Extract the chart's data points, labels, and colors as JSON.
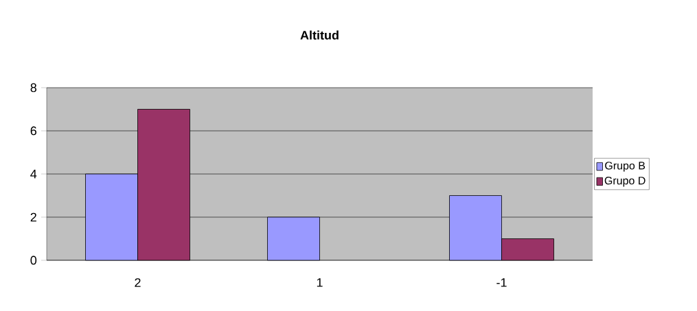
{
  "chart_data": {
    "type": "bar",
    "title": "Altitud",
    "categories": [
      "2",
      "1",
      "-1"
    ],
    "series": [
      {
        "name": "Grupo B",
        "color": "#9999ff",
        "values": [
          4,
          2,
          3
        ]
      },
      {
        "name": "Grupo D",
        "color": "#993366",
        "values": [
          7,
          null,
          1
        ]
      }
    ],
    "ylim": [
      0,
      8
    ],
    "yticks": [
      0,
      2,
      4,
      6,
      8
    ],
    "grid": "y",
    "legend": "right"
  }
}
